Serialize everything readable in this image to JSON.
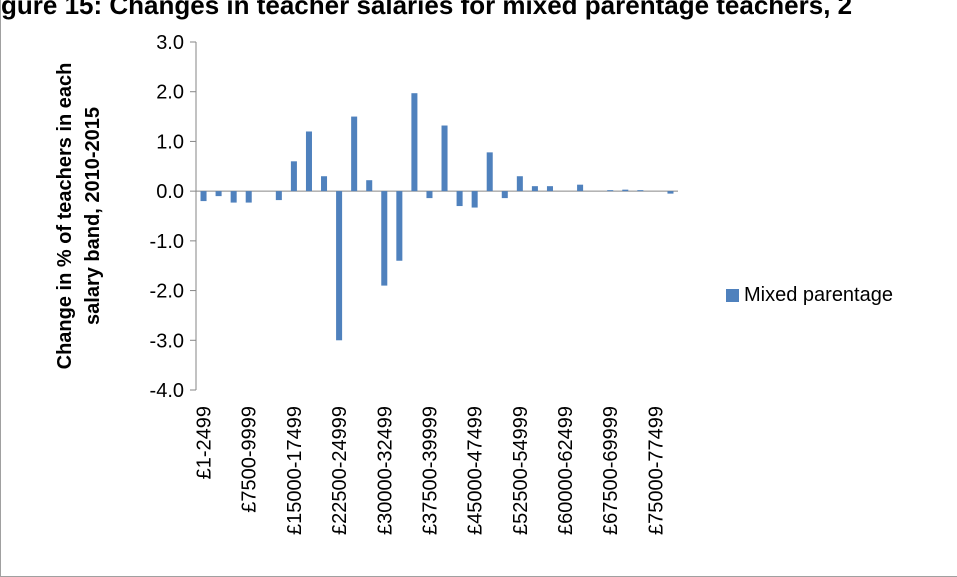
{
  "chart_data": {
    "type": "bar",
    "title": "gure 15: Changes in teacher salaries for mixed parentage teachers, 2",
    "ylabel": "Change in % of teachers in each salary band, 2010-2015",
    "xlabel": "",
    "ylim": [
      -4.0,
      3.0
    ],
    "yticks": [
      "3.0",
      "2.0",
      "1.0",
      "0.0",
      "-1.0",
      "-2.0",
      "-3.0",
      "-4.0"
    ],
    "ytick_values": [
      3.0,
      2.0,
      1.0,
      0.0,
      -1.0,
      -2.0,
      -3.0,
      -4.0
    ],
    "grid": false,
    "legend_position": "right",
    "categories": [
      "£1-2499",
      "£2500-4999",
      "£5000-7499",
      "£7500-9999",
      "£10000-12499",
      "£12500-14999",
      "£15000-17499",
      "£17500-19999",
      "£20000-22499",
      "£22500-24999",
      "£25000-27499",
      "£27500-29999",
      "£30000-32499",
      "£32500-34999",
      "£35000-37499",
      "£37500-39999",
      "£40000-42499",
      "£42500-44999",
      "£45000-47499",
      "£47500-49999",
      "£50000-52499",
      "£52500-54999",
      "£55000-57499",
      "£57500-59999",
      "£60000-62499",
      "£62500-64999",
      "£65000-67499",
      "£67500-69999",
      "£70000-72499",
      "£72500-74999",
      "£75000-77499",
      "£77500-79999"
    ],
    "visible_tick_labels": [
      "£1-2499",
      "£7500-9999",
      "£15000-17499",
      "£22500-24999",
      "£30000-32499",
      "£37500-39999",
      "£45000-47499",
      "£52500-54999",
      "£60000-62499",
      "£67500-69999",
      "£75000-77499"
    ],
    "series": [
      {
        "name": "Mixed parentage",
        "color": "#4f81bd",
        "values": [
          -0.2,
          -0.1,
          -0.23,
          -0.23,
          0.0,
          -0.18,
          0.6,
          1.2,
          0.3,
          -3.0,
          1.5,
          0.22,
          -1.9,
          -1.4,
          1.97,
          -0.14,
          1.32,
          -0.3,
          -0.33,
          0.78,
          -0.14,
          0.3,
          0.1,
          0.1,
          0.0,
          0.13,
          0.0,
          0.02,
          0.03,
          0.02,
          0.0,
          -0.05
        ]
      }
    ]
  }
}
